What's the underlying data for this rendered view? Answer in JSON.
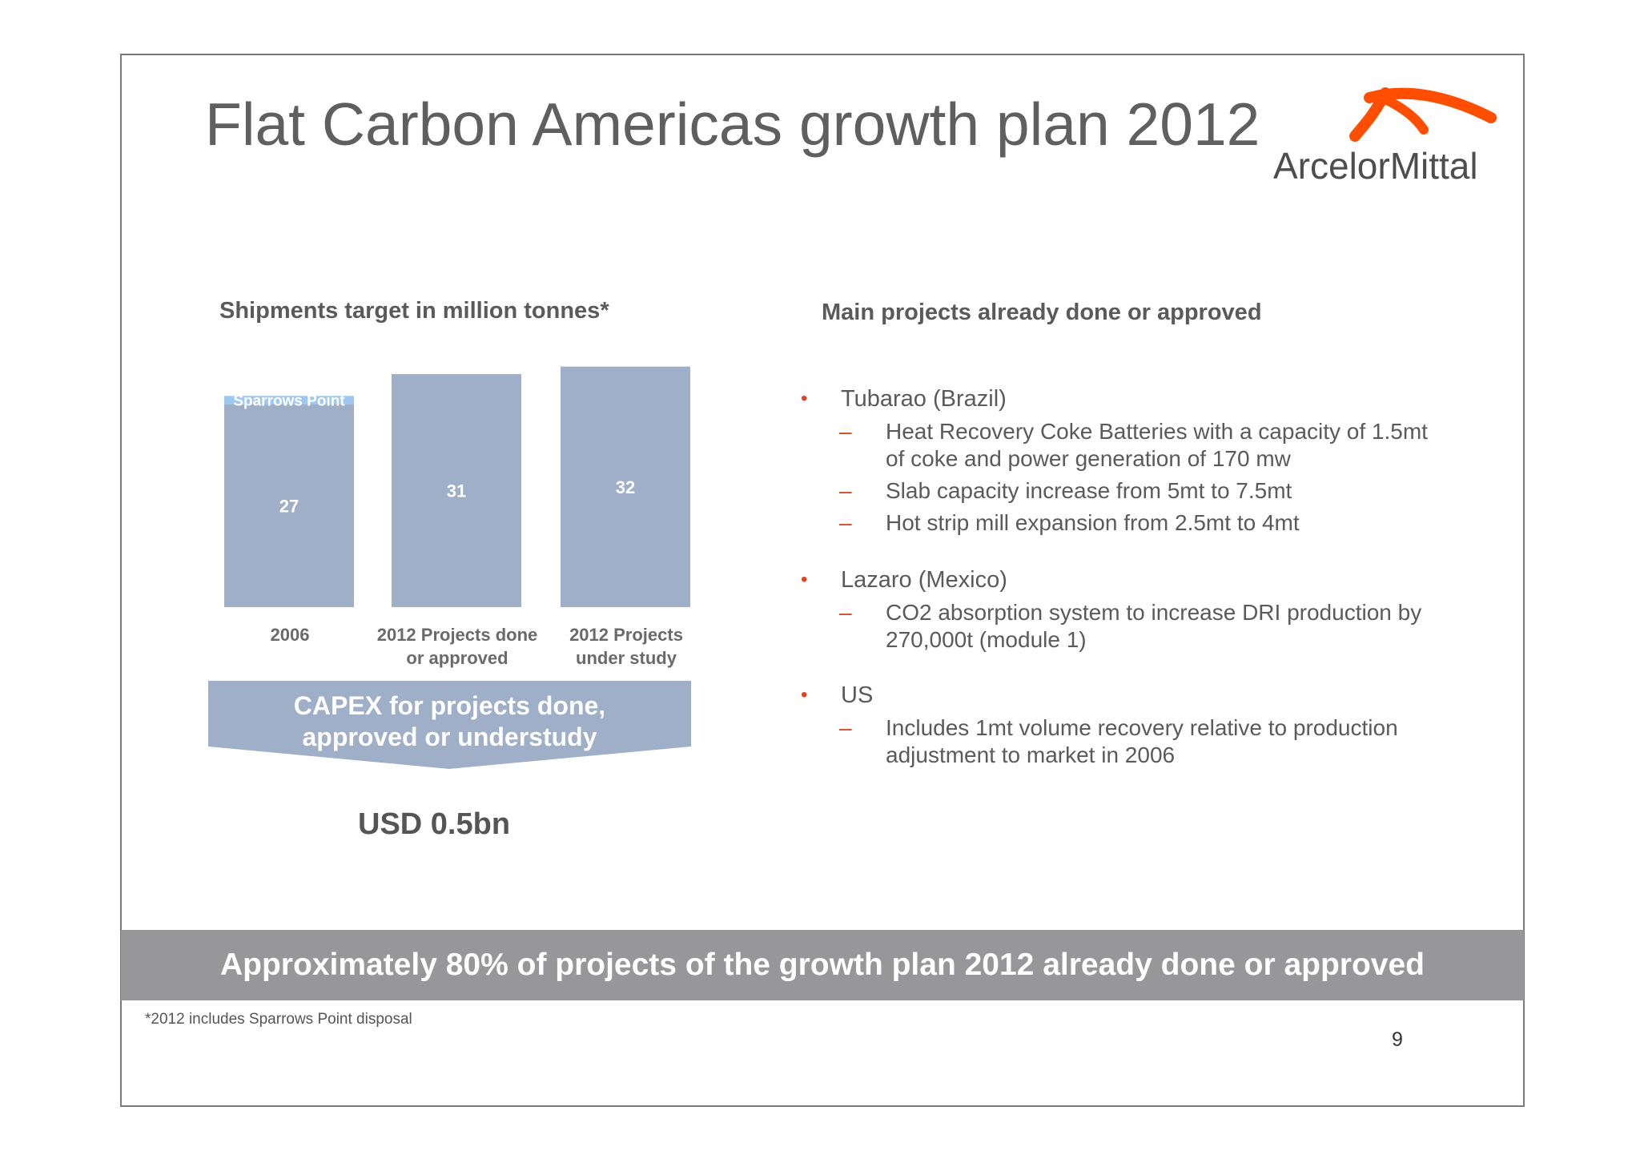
{
  "title": "Flat Carbon Americas growth plan 2012",
  "logo": {
    "text": "ArcelorMittal",
    "accent": "#ff4e00"
  },
  "left_heading": "Shipments target in million tonnes*",
  "right_heading": "Main projects already done or approved",
  "chart_data": {
    "type": "bar",
    "categories": [
      "2006",
      "2012 Projects done or approved",
      "2012 Projects under study"
    ],
    "category_lines": [
      [
        "2006"
      ],
      [
        "2012 Projects done",
        "or approved"
      ],
      [
        "2012 Projects",
        "under study"
      ]
    ],
    "series": [
      {
        "values": [
          27,
          31,
          32
        ],
        "labels": [
          "27",
          "31",
          "32"
        ]
      },
      {
        "name": "Sparrows Point",
        "values": [
          1.1,
          0,
          0
        ]
      }
    ],
    "stacked": true,
    "bar_color": "#9eafc7",
    "segment_color": "#9ec8f4",
    "ylim": [
      0,
      32.5
    ]
  },
  "capex": {
    "lines": [
      "CAPEX for projects done,",
      "approved or understudy"
    ],
    "color": "#9eafc7"
  },
  "usd": "USD 0.5bn",
  "projects": [
    {
      "bullet": "•",
      "name": "Tubarao (Brazil)",
      "items": [
        {
          "dash": "–",
          "lines": [
            "Heat Recovery Coke Batteries with a capacity of 1.5mt",
            "of coke and power generation of 170 mw"
          ]
        },
        {
          "dash": "–",
          "lines": [
            "Slab capacity increase from 5mt to 7.5mt"
          ]
        },
        {
          "dash": "–",
          "lines": [
            "Hot strip mill expansion from 2.5mt to 4mt"
          ]
        }
      ]
    },
    {
      "bullet": "•",
      "name": "Lazaro (Mexico)",
      "items": [
        {
          "dash": "–",
          "lines": [
            "CO2 absorption system to increase DRI production by",
            "270,000t (module 1)"
          ]
        }
      ]
    },
    {
      "bullet": "•",
      "name": "US",
      "items": [
        {
          "dash": "–",
          "lines": [
            "Includes 1mt volume recovery relative to production",
            "adjustment to market in 2006"
          ]
        }
      ]
    }
  ],
  "banner": "Approximately 80% of projects of the growth plan 2012 already done or approved",
  "footnote": "*2012 includes Sparrows Point disposal",
  "page_number": "9"
}
